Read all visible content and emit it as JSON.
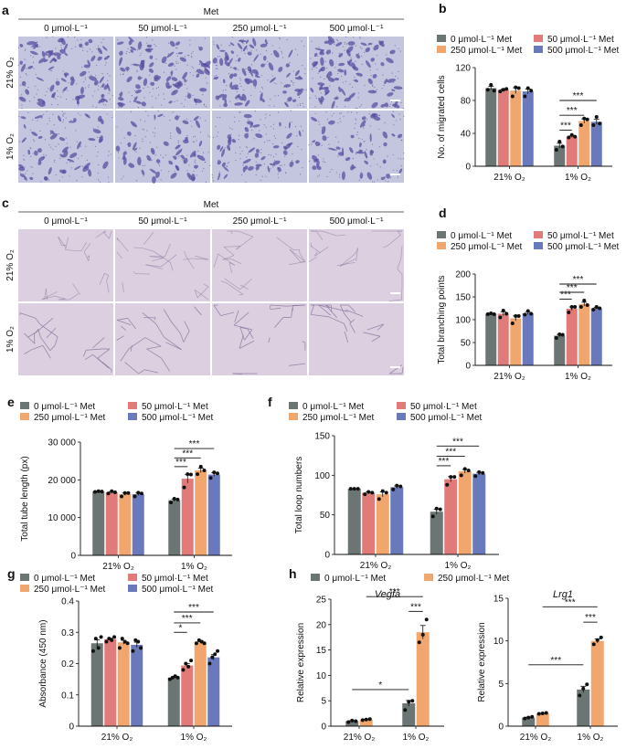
{
  "figure": {
    "micro_ab": {
      "letter": "a",
      "header": "Met",
      "cols": [
        "0 μmol·L⁻¹",
        "50 μmol·L⁻¹",
        "250 μmol·L⁻¹",
        "500 μmol·L⁻¹"
      ],
      "rows": [
        "21% O₂",
        "1% O₂"
      ]
    },
    "micro_cd": {
      "letter": "c",
      "header": "Met",
      "cols": [
        "0 μmol·L⁻¹",
        "50 μmol·L⁻¹",
        "250 μmol·L⁻¹",
        "500 μmol·L⁻¹"
      ],
      "rows": [
        "21% O₂",
        "1% O₂"
      ]
    }
  },
  "colors": {
    "met0": "#6b7573",
    "met50": "#e07b7a",
    "met250": "#f0a66c",
    "met500": "#6a79bb",
    "stain_ab": "#c4c6e0",
    "stain_cd": "#dcd0e0",
    "cells_ab": "#5a4fa0",
    "tubes_cd": "#8c7aa0"
  },
  "chart_data": [
    {
      "letter": "b",
      "type": "bar",
      "categories": [
        "21% O₂",
        "1% O₂"
      ],
      "series": [
        {
          "name": "0 μmol·L⁻¹ Met",
          "values": [
            95,
            25
          ],
          "points": [
            [
              93,
              99,
              92
            ],
            [
              20,
              30,
              24
            ]
          ]
        },
        {
          "name": "50 μmol·L⁻¹ Met",
          "values": [
            93,
            36
          ],
          "points": [
            [
              91,
              93,
              94
            ],
            [
              35,
              38,
              36
            ]
          ]
        },
        {
          "name": "250 μmol·L⁻¹ Met",
          "values": [
            92,
            55
          ],
          "points": [
            [
              85,
              96,
              95
            ],
            [
              50,
              58,
              57
            ]
          ]
        },
        {
          "name": "500 μmol·L⁻¹ Met",
          "values": [
            91,
            54
          ],
          "points": [
            [
              85,
              95,
              92
            ],
            [
              50,
              60,
              52
            ]
          ]
        }
      ],
      "ylabel": "No. of migrated cells",
      "ylim": [
        0,
        120
      ],
      "yticks": [
        0,
        40,
        80,
        120
      ],
      "ytick_labels": [
        "0",
        "40",
        "80",
        "120"
      ],
      "sig": [
        {
          "label": "***",
          "group": 1,
          "from": 0,
          "to": 1,
          "y": 44
        },
        {
          "label": "***",
          "group": 1,
          "from": 0,
          "to": 2,
          "y": 62
        },
        {
          "label": "***",
          "group": 1,
          "from": 0,
          "to": 3,
          "y": 80
        }
      ]
    },
    {
      "letter": "d",
      "type": "bar",
      "categories": [
        "21% O₂",
        "1% O₂"
      ],
      "series": [
        {
          "name": "0 μmol·L⁻¹ Met",
          "values": [
            113,
            65
          ],
          "points": [
            [
              112,
              114,
              112
            ],
            [
              60,
              68,
              67
            ]
          ]
        },
        {
          "name": "50 μmol·L⁻¹ Met",
          "values": [
            113,
            124
          ],
          "points": [
            [
              105,
              120,
              113
            ],
            [
              116,
              128,
              128
            ]
          ]
        },
        {
          "name": "250 μmol·L⁻¹ Met",
          "values": [
            103,
            134
          ],
          "points": [
            [
              92,
              108,
              108
            ],
            [
              128,
              142,
              132
            ]
          ]
        },
        {
          "name": "500 μmol·L⁻¹ Met",
          "values": [
            114,
            125
          ],
          "points": [
            [
              111,
              119,
              113
            ],
            [
              122,
              128,
              125
            ]
          ]
        }
      ],
      "ylabel": "Total branching points",
      "ylim": [
        0,
        200
      ],
      "yticks": [
        0,
        50,
        100,
        150,
        200
      ],
      "ytick_labels": [
        "0",
        "50",
        "100",
        "150",
        "200"
      ],
      "sig": [
        {
          "label": "***",
          "group": 1,
          "from": 0,
          "to": 1,
          "y": 145
        },
        {
          "label": "***",
          "group": 1,
          "from": 0,
          "to": 2,
          "y": 160
        },
        {
          "label": "***",
          "group": 1,
          "from": 0,
          "to": 3,
          "y": 178
        }
      ]
    },
    {
      "letter": "e",
      "type": "bar",
      "categories": [
        "21% O₂",
        "1% O₂"
      ],
      "series": [
        {
          "name": "0 μmol·L⁻¹ Met",
          "values": [
            16900,
            14600
          ],
          "points": [
            [
              16800,
              17000,
              16900
            ],
            [
              14000,
              15000,
              14800
            ]
          ]
        },
        {
          "name": "50 μmol·L⁻¹ Met",
          "values": [
            16700,
            20300
          ],
          "points": [
            [
              16400,
              17000,
              16700
            ],
            [
              18000,
              21500,
              21400
            ]
          ]
        },
        {
          "name": "250 μmol·L⁻¹ Met",
          "values": [
            16200,
            22500
          ],
          "points": [
            [
              15600,
              16500,
              16500
            ],
            [
              21500,
              23500,
              22500
            ]
          ]
        },
        {
          "name": "500 μmol·L⁻¹ Met",
          "values": [
            16200,
            21400
          ],
          "points": [
            [
              15600,
              16600,
              16400
            ],
            [
              20500,
              22000,
              21700
            ]
          ]
        }
      ],
      "ylabel": "Total tube length (px)",
      "ylim": [
        0,
        30000
      ],
      "yticks": [
        0,
        10000,
        20000,
        30000
      ],
      "ytick_labels": [
        "0",
        "10 000",
        "20 000",
        "30 000"
      ],
      "sig": [
        {
          "label": "***",
          "group": 1,
          "from": 0,
          "to": 1,
          "y": 23500
        },
        {
          "label": "***",
          "group": 1,
          "from": 0,
          "to": 2,
          "y": 25800
        },
        {
          "label": "***",
          "group": 1,
          "from": 0,
          "to": 3,
          "y": 28300
        }
      ]
    },
    {
      "letter": "f",
      "type": "bar",
      "categories": [
        "21% O₂",
        "1% O₂"
      ],
      "series": [
        {
          "name": "0 μmol·L⁻¹ Met",
          "values": [
            83,
            54
          ],
          "points": [
            [
              83,
              83,
              83
            ],
            [
              48,
              58,
              57
            ]
          ]
        },
        {
          "name": "50 μmol·L⁻¹ Met",
          "values": [
            78,
            95
          ],
          "points": [
            [
              76,
              79,
              78
            ],
            [
              88,
              98,
              98
            ]
          ]
        },
        {
          "name": "250 μmol·L⁻¹ Met",
          "values": [
            76,
            105
          ],
          "points": [
            [
              70,
              80,
              78
            ],
            [
              100,
              108,
              106
            ]
          ]
        },
        {
          "name": "500 μmol·L⁻¹ Met",
          "values": [
            85,
            102
          ],
          "points": [
            [
              82,
              87,
              86
            ],
            [
              99,
              104,
              103
            ]
          ]
        }
      ],
      "ylabel": "Total loop numbers",
      "ylim": [
        0,
        150
      ],
      "yticks": [
        0,
        50,
        100,
        150
      ],
      "ytick_labels": [
        "0",
        "50",
        "100",
        "150"
      ],
      "sig": [
        {
          "label": "***",
          "group": 1,
          "from": 0,
          "to": 1,
          "y": 112
        },
        {
          "label": "***",
          "group": 1,
          "from": 0,
          "to": 2,
          "y": 124
        },
        {
          "label": "***",
          "group": 1,
          "from": 0,
          "to": 3,
          "y": 137
        }
      ]
    },
    {
      "letter": "g",
      "type": "bar",
      "categories": [
        "21% O₂",
        "1% O₂"
      ],
      "series": [
        {
          "name": "0 μmol·L⁻¹ Met",
          "values": [
            0.265,
            0.155
          ],
          "points": [
            [
              0.24,
              0.28,
              0.25,
              0.285
            ],
            [
              0.15,
              0.155,
              0.16,
              0.155
            ]
          ]
        },
        {
          "name": "50 μmol·L⁻¹ Met",
          "values": [
            0.278,
            0.194
          ],
          "points": [
            [
              0.27,
              0.28,
              0.275,
              0.285
            ],
            [
              0.18,
              0.2,
              0.19,
              0.21
            ]
          ]
        },
        {
          "name": "250 μmol·L⁻¹ Met",
          "values": [
            0.268,
            0.268
          ],
          "points": [
            [
              0.25,
              0.28,
              0.27,
              0.265
            ],
            [
              0.265,
              0.275,
              0.27,
              0.265
            ]
          ]
        },
        {
          "name": "500 μmol·L⁻¹ Met",
          "values": [
            0.26,
            0.22
          ],
          "points": [
            [
              0.24,
              0.275,
              0.27,
              0.25
            ],
            [
              0.2,
              0.22,
              0.23,
              0.24
            ]
          ]
        }
      ],
      "ylabel": "Absorbance (450 nm)",
      "ylim": [
        0,
        0.4
      ],
      "yticks": [
        0,
        0.1,
        0.2,
        0.3,
        0.4
      ],
      "ytick_labels": [
        "0",
        "0.1",
        "0.2",
        "0.3",
        "0.4"
      ],
      "sig": [
        {
          "label": "*",
          "group": 1,
          "from": 0,
          "to": 1,
          "y": 0.3
        },
        {
          "label": "***",
          "group": 1,
          "from": 0,
          "to": 2,
          "y": 0.33
        },
        {
          "label": "***",
          "group": 1,
          "from": 0,
          "to": 3,
          "y": 0.365
        }
      ]
    },
    {
      "letter": "h",
      "type": "bar",
      "title": "Vegfa",
      "categories": [
        "21% O₂",
        "1% O₂"
      ],
      "series": [
        {
          "name": "0 μmol·L⁻¹ Met",
          "values": [
            1.0,
            4.5
          ],
          "points": [
            [
              0.8,
              1.1,
              1.0
            ],
            [
              3.2,
              4.8,
              5.0
            ]
          ]
        },
        {
          "name": "250 μmol·L⁻¹ Met",
          "values": [
            1.3,
            18.5
          ],
          "points": [
            [
              1.2,
              1.3,
              1.4
            ],
            [
              16.5,
              18.0,
              21.0
            ]
          ]
        }
      ],
      "ylabel": "Relative expression",
      "ylim": [
        0,
        25
      ],
      "yticks": [
        0,
        5,
        10,
        15,
        20,
        25
      ],
      "ytick_labels": [
        "0",
        "5",
        "10",
        "15",
        "20",
        "25"
      ],
      "sig": [
        {
          "label": "*",
          "from_cat": 0,
          "to_cat": 1,
          "from": 0,
          "to": 0,
          "y": 7.2
        },
        {
          "label": "***",
          "group": 1,
          "from": 0,
          "to": 1,
          "y": 22.6
        },
        {
          "label": "***",
          "from_cat": 0,
          "to_cat": 1,
          "from": 1,
          "to": 1,
          "y": 25.5
        }
      ]
    },
    {
      "title": "Lrg1",
      "type": "bar",
      "categories": [
        "21% O₂",
        "1% O₂"
      ],
      "series": [
        {
          "name": "0 μmol·L⁻¹ Met",
          "values": [
            1.0,
            4.3
          ],
          "points": [
            [
              0.9,
              1.0,
              1.1
            ],
            [
              3.6,
              4.4,
              4.9
            ]
          ]
        },
        {
          "name": "250 μmol·L⁻¹ Met",
          "values": [
            1.5,
            10.0
          ],
          "points": [
            [
              1.45,
              1.5,
              1.55
            ],
            [
              9.6,
              10.1,
              10.4
            ]
          ]
        }
      ],
      "ylabel": "Relative expression",
      "ylim": [
        0,
        15
      ],
      "yticks": [
        0,
        5,
        10,
        15
      ],
      "ytick_labels": [
        "0",
        "5",
        "10",
        "15"
      ],
      "sig": [
        {
          "label": "***",
          "from_cat": 0,
          "to_cat": 1,
          "from": 0,
          "to": 0,
          "y": 7.2
        },
        {
          "label": "***",
          "group": 1,
          "from": 0,
          "to": 1,
          "y": 12.2
        },
        {
          "label": "***",
          "from_cat": 0,
          "to_cat": 1,
          "from": 1,
          "to": 1,
          "y": 14.0
        }
      ]
    }
  ]
}
